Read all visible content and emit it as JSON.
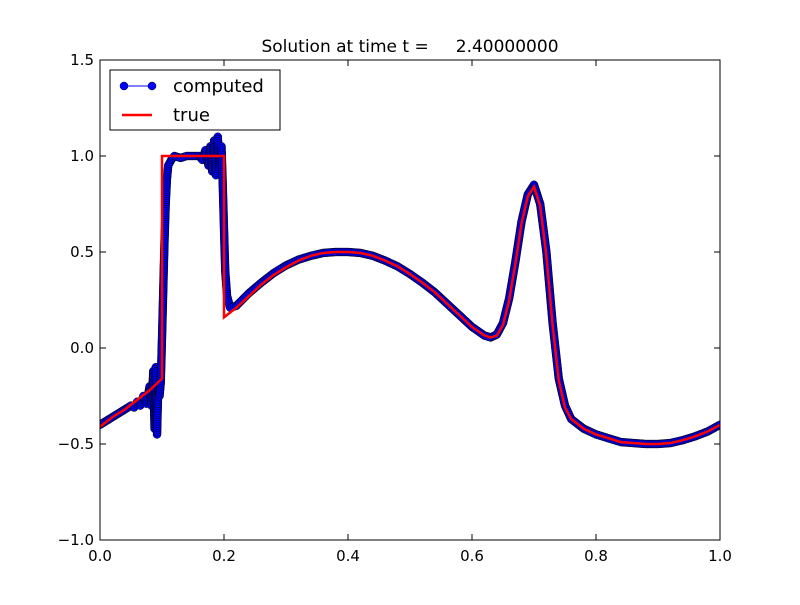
{
  "colors": {
    "computed": "#0000ff",
    "computed_edge": "#000000",
    "true": "#ff0000",
    "axes": "#000000",
    "background": "#ffffff"
  },
  "chart_data": {
    "type": "line",
    "title": "Solution at time t =     2.40000000",
    "xlabel": "",
    "ylabel": "",
    "xlim": [
      0.0,
      1.0
    ],
    "ylim": [
      -1.0,
      1.5
    ],
    "grid": false,
    "legend_position": "top-left",
    "xticks": [
      0.0,
      0.2,
      0.4,
      0.6,
      0.8,
      1.0
    ],
    "xtick_labels": [
      "0.0",
      "0.2",
      "0.4",
      "0.6",
      "0.8",
      "1.0"
    ],
    "yticks": [
      -1.0,
      -0.5,
      0.0,
      0.5,
      1.0,
      1.5
    ],
    "ytick_labels": [
      "−1.0",
      "−0.5",
      "0.0",
      "0.5",
      "1.0",
      "1.5"
    ],
    "series": [
      {
        "name": "computed",
        "style": "line-with-circle-markers",
        "x": [
          0.0,
          0.01,
          0.02,
          0.03,
          0.04,
          0.05,
          0.055,
          0.06,
          0.065,
          0.07,
          0.075,
          0.08,
          0.083,
          0.086,
          0.088,
          0.09,
          0.092,
          0.094,
          0.096,
          0.098,
          0.1,
          0.102,
          0.104,
          0.106,
          0.108,
          0.11,
          0.115,
          0.12,
          0.13,
          0.14,
          0.15,
          0.16,
          0.165,
          0.17,
          0.175,
          0.178,
          0.181,
          0.184,
          0.187,
          0.19,
          0.193,
          0.196,
          0.198,
          0.2,
          0.202,
          0.205,
          0.21,
          0.22,
          0.24,
          0.26,
          0.28,
          0.3,
          0.32,
          0.34,
          0.36,
          0.38,
          0.4,
          0.42,
          0.44,
          0.46,
          0.48,
          0.5,
          0.52,
          0.54,
          0.56,
          0.58,
          0.6,
          0.62,
          0.63,
          0.64,
          0.65,
          0.66,
          0.67,
          0.68,
          0.69,
          0.7,
          0.71,
          0.72,
          0.73,
          0.74,
          0.75,
          0.76,
          0.78,
          0.8,
          0.82,
          0.84,
          0.86,
          0.88,
          0.9,
          0.92,
          0.94,
          0.96,
          0.98,
          1.0
        ],
        "y": [
          -0.4,
          -0.38,
          -0.36,
          -0.34,
          -0.32,
          -0.3,
          -0.31,
          -0.28,
          -0.3,
          -0.25,
          -0.29,
          -0.2,
          -0.3,
          -0.12,
          -0.42,
          -0.1,
          -0.45,
          -0.2,
          -0.25,
          -0.18,
          0.05,
          0.3,
          0.55,
          0.75,
          0.88,
          0.95,
          0.98,
          1.0,
          0.99,
          1.0,
          1.0,
          1.0,
          0.98,
          1.03,
          0.95,
          1.05,
          0.92,
          1.08,
          0.9,
          1.1,
          0.93,
          1.05,
          0.85,
          0.62,
          0.4,
          0.27,
          0.21,
          0.22,
          0.285,
          0.34,
          0.39,
          0.43,
          0.46,
          0.48,
          0.495,
          0.5,
          0.5,
          0.495,
          0.48,
          0.455,
          0.425,
          0.385,
          0.34,
          0.29,
          0.23,
          0.17,
          0.11,
          0.065,
          0.055,
          0.07,
          0.13,
          0.26,
          0.45,
          0.66,
          0.8,
          0.85,
          0.75,
          0.5,
          0.13,
          -0.16,
          -0.3,
          -0.37,
          -0.42,
          -0.45,
          -0.47,
          -0.49,
          -0.495,
          -0.5,
          -0.5,
          -0.495,
          -0.48,
          -0.46,
          -0.435,
          -0.4
        ]
      },
      {
        "name": "true",
        "style": "line",
        "x": [
          0.0,
          0.02,
          0.04,
          0.06,
          0.08,
          0.1,
          0.1,
          0.12,
          0.14,
          0.16,
          0.18,
          0.2,
          0.2,
          0.22,
          0.24,
          0.26,
          0.28,
          0.3,
          0.32,
          0.34,
          0.36,
          0.38,
          0.4,
          0.42,
          0.44,
          0.46,
          0.48,
          0.5,
          0.52,
          0.54,
          0.56,
          0.58,
          0.6,
          0.62,
          0.63,
          0.64,
          0.65,
          0.66,
          0.67,
          0.68,
          0.69,
          0.7,
          0.71,
          0.72,
          0.73,
          0.74,
          0.75,
          0.76,
          0.78,
          0.8,
          0.82,
          0.84,
          0.86,
          0.88,
          0.9,
          0.92,
          0.94,
          0.96,
          0.98,
          1.0
        ],
        "y": [
          -0.41,
          -0.36,
          -0.32,
          -0.27,
          -0.22,
          -0.16,
          1.0,
          1.0,
          1.0,
          1.0,
          1.0,
          1.0,
          0.16,
          0.21,
          0.27,
          0.33,
          0.38,
          0.42,
          0.455,
          0.48,
          0.495,
          0.5,
          0.5,
          0.495,
          0.48,
          0.455,
          0.425,
          0.385,
          0.34,
          0.29,
          0.23,
          0.17,
          0.11,
          0.065,
          0.055,
          0.065,
          0.12,
          0.25,
          0.44,
          0.65,
          0.79,
          0.84,
          0.74,
          0.48,
          0.12,
          -0.17,
          -0.31,
          -0.37,
          -0.42,
          -0.45,
          -0.47,
          -0.49,
          -0.495,
          -0.5,
          -0.5,
          -0.495,
          -0.48,
          -0.46,
          -0.435,
          -0.4
        ]
      }
    ]
  }
}
